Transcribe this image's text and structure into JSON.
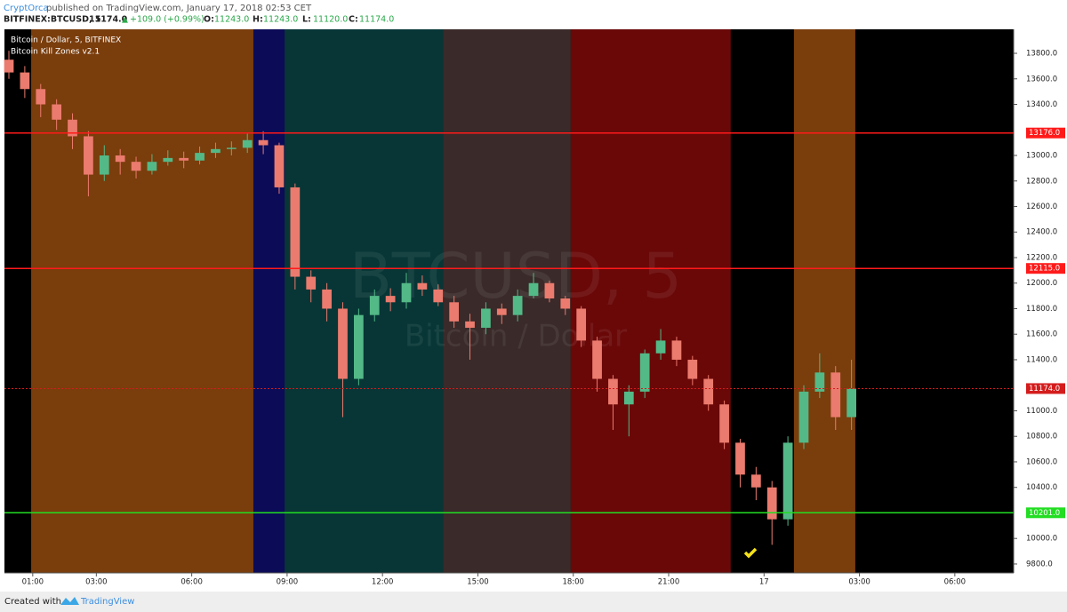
{
  "header": {
    "author": "CryptOrca",
    "published": "published on TradingView.com, January 17, 2018 02:53 CET",
    "symbol": "BITFINEX:BTCUSD, 5",
    "last": "11174.0",
    "arrow": "▲",
    "change": "+109.0 (+0.99%)",
    "ohlc": [
      {
        "key": "O:",
        "value": "11243.0"
      },
      {
        "key": "H:",
        "value": "11243.0"
      },
      {
        "key": "L:",
        "value": "11120.0"
      },
      {
        "key": "C:",
        "value": "11174.0"
      }
    ]
  },
  "chart_data": {
    "type": "candlestick",
    "legend_title": "Bitcoin / Dollar, 5, BITFINEX",
    "indicator": "Bitcoin Kill Zones v2.1",
    "watermark": "BTCUSD, 5",
    "watermark_subtitle": "Bitcoin / Dollar",
    "up_color": "#53b987",
    "down_color": "#eb7b6e",
    "x": [
      0.25,
      0.75,
      1.25,
      1.75,
      2.25,
      2.75,
      3.25,
      3.75,
      4.25,
      4.75,
      5.25,
      5.75,
      6.25,
      6.75,
      7.25,
      7.75,
      8.25,
      8.75,
      9.25,
      9.75,
      10.25,
      10.75,
      11.25,
      11.75,
      12.25,
      12.75,
      13.25,
      13.75,
      14.25,
      14.75,
      15.25,
      15.75,
      16.25,
      16.75,
      17.25,
      17.75,
      18.25,
      18.75,
      19.25,
      19.75,
      20.25,
      20.75,
      21.25,
      21.75,
      22.25,
      22.75,
      23.25,
      23.75,
      24.25,
      24.75,
      25.25,
      25.75,
      26.25,
      26.75
    ],
    "open": [
      13750,
      13650,
      13520,
      13400,
      13280,
      13150,
      12850,
      13000,
      12950,
      12880,
      12950,
      12980,
      12960,
      13020,
      13050,
      13060,
      13120,
      13080,
      12750,
      12050,
      11950,
      11800,
      11250,
      11750,
      11900,
      11850,
      12000,
      11950,
      11850,
      11700,
      11650,
      11800,
      11750,
      11900,
      12000,
      11880,
      11800,
      11550,
      11250,
      11050,
      11150,
      11450,
      11550,
      11400,
      11250,
      11050,
      10750,
      10500,
      10400,
      10150,
      10750,
      11150,
      11300,
      10950
    ],
    "high": [
      13820,
      13700,
      13560,
      13440,
      13330,
      13190,
      13080,
      13050,
      12990,
      13010,
      13040,
      13030,
      13070,
      13100,
      13110,
      13170,
      13190,
      13100,
      12780,
      12100,
      12000,
      11850,
      11800,
      11950,
      11960,
      12080,
      12060,
      11990,
      11900,
      11760,
      11850,
      11840,
      11950,
      12080,
      12020,
      11900,
      11820,
      11580,
      11280,
      11200,
      11480,
      11640,
      11580,
      11430,
      11280,
      11080,
      10780,
      10560,
      10450,
      10800,
      11200,
      11450,
      11350,
      11400
    ],
    "low": [
      13600,
      13450,
      13300,
      13200,
      13050,
      12680,
      12800,
      12850,
      12820,
      12850,
      12920,
      12900,
      12930,
      12980,
      13000,
      13020,
      13010,
      12700,
      11950,
      11850,
      11700,
      10950,
      11200,
      11700,
      11780,
      11800,
      11900,
      11820,
      11650,
      11400,
      11600,
      11680,
      11700,
      11880,
      11850,
      11750,
      11500,
      11150,
      10850,
      10800,
      11100,
      11400,
      11350,
      11200,
      11000,
      10700,
      10400,
      10300,
      9950,
      10100,
      10700,
      11100,
      10850,
      10850
    ],
    "close": [
      13650,
      13520,
      13400,
      13280,
      13150,
      12850,
      13000,
      12950,
      12880,
      12950,
      12980,
      12960,
      13020,
      13050,
      13060,
      13120,
      13080,
      12750,
      12050,
      11950,
      11800,
      11250,
      11750,
      11900,
      11850,
      12000,
      11950,
      11850,
      11700,
      11650,
      11800,
      11750,
      11900,
      12000,
      11880,
      11800,
      11550,
      11250,
      11050,
      11150,
      11450,
      11550,
      11400,
      11250,
      11050,
      10750,
      10500,
      10400,
      10150,
      10750,
      11150,
      11300,
      10950,
      11174
    ],
    "zones": [
      {
        "start": 0.95,
        "end": 7.94,
        "color": "#7a3d0c"
      },
      {
        "start": 7.94,
        "end": 8.92,
        "color": "#0b0b58"
      },
      {
        "start": 8.92,
        "end": 13.9,
        "color": "#083636"
      },
      {
        "start": 13.9,
        "end": 17.92,
        "color": "#3a2a29"
      },
      {
        "start": 17.92,
        "end": 22.95,
        "color": "#6a0808"
      },
      {
        "start": 24.94,
        "end": 26.87,
        "color": "#7a3d0c"
      }
    ],
    "levels": [
      {
        "value": 13176,
        "label": "13176.0",
        "color": "#ff1a1a",
        "dash": false
      },
      {
        "value": 12115,
        "label": "12115.0",
        "color": "#ff1a1a",
        "dash": false
      },
      {
        "value": 11174,
        "label": "11174.0",
        "color": "#d41c1c",
        "dash": true
      },
      {
        "value": 10201,
        "label": "10201.0",
        "color": "#22dd22",
        "dash": false
      }
    ],
    "xlim": [
      0.11,
      31.85
    ],
    "ylim": [
      9730,
      13988
    ],
    "xticks": [
      {
        "value": 1,
        "label": "01:00"
      },
      {
        "value": 3,
        "label": "03:00"
      },
      {
        "value": 6,
        "label": "06:00"
      },
      {
        "value": 9,
        "label": "09:00"
      },
      {
        "value": 12,
        "label": "12:00"
      },
      {
        "value": 15,
        "label": "15:00"
      },
      {
        "value": 18,
        "label": "18:00"
      },
      {
        "value": 21,
        "label": "21:00"
      },
      {
        "value": 24,
        "label": "17"
      },
      {
        "value": 27,
        "label": "03:00"
      },
      {
        "value": 30,
        "label": "06:00"
      }
    ],
    "yticks": [
      {
        "value": 9800,
        "label": "9800.0"
      },
      {
        "value": 10000,
        "label": "10000.0"
      },
      {
        "value": 10400,
        "label": "10400.0"
      },
      {
        "value": 10600,
        "label": "10600.0"
      },
      {
        "value": 10800,
        "label": "10800.0"
      },
      {
        "value": 11000,
        "label": "11000.0"
      },
      {
        "value": 11400,
        "label": "11400.0"
      },
      {
        "value": 11600,
        "label": "11600.0"
      },
      {
        "value": 11800,
        "label": "11800.0"
      },
      {
        "value": 12000,
        "label": "12000.0"
      },
      {
        "value": 12200,
        "label": "12200.0"
      },
      {
        "value": 12400,
        "label": "12400.0"
      },
      {
        "value": 12600,
        "label": "12600.0"
      },
      {
        "value": 12800,
        "label": "12800.0"
      },
      {
        "value": 13000,
        "label": "13000.0"
      },
      {
        "value": 13400,
        "label": "13400.0"
      },
      {
        "value": 13600,
        "label": "13600.0"
      },
      {
        "value": 13800,
        "label": "13800.0"
      }
    ]
  },
  "footer": {
    "created": "Created with",
    "brand": "TradingView"
  }
}
